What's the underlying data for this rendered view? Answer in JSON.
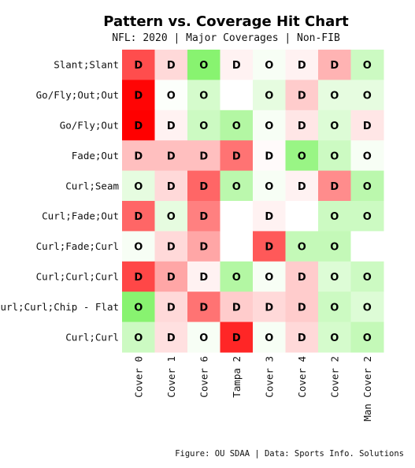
{
  "chart_data": {
    "type": "heatmap",
    "title": "Pattern vs. Coverage Hit Chart",
    "subtitle": "NFL: 2020 | Major Coverages | Non-FIB",
    "caption": "Figure: OU SDAA | Data: Sports Info. Solutions",
    "rows": [
      "Slant;Slant",
      "Go/Fly;Out;Out",
      "Go/Fly;Out",
      "Fade;Out",
      "Curl;Seam",
      "Curl;Fade;Out",
      "Curl;Fade;Curl",
      "Curl;Curl;Curl",
      "Curl;Curl;Chip - Flat",
      "Curl;Curl"
    ],
    "columns": [
      "Cover 0",
      "Cover 1",
      "Cover 6",
      "Tampa 2",
      "Cover 3",
      "Cover 4",
      "Cover 2",
      "Man Cover 2"
    ],
    "cell_labels": [
      [
        "D",
        "D",
        "O",
        "D",
        "O",
        "D",
        "D",
        "O"
      ],
      [
        "D",
        "O",
        "O",
        "",
        "O",
        "D",
        "O",
        "O"
      ],
      [
        "D",
        "D",
        "O",
        "O",
        "O",
        "D",
        "O",
        "D"
      ],
      [
        "D",
        "D",
        "D",
        "D",
        "D",
        "O",
        "O",
        "O"
      ],
      [
        "O",
        "D",
        "D",
        "O",
        "O",
        "D",
        "D",
        "O"
      ],
      [
        "D",
        "O",
        "D",
        "",
        "D",
        "",
        "O",
        "O"
      ],
      [
        "O",
        "D",
        "D",
        "",
        "D",
        "O",
        "O",
        ""
      ],
      [
        "D",
        "D",
        "D",
        "O",
        "O",
        "D",
        "O",
        "O"
      ],
      [
        "O",
        "D",
        "D",
        "D",
        "D",
        "D",
        "O",
        "O"
      ],
      [
        "O",
        "D",
        "O",
        "D",
        "O",
        "D",
        "O",
        "O"
      ]
    ],
    "intensity": [
      [
        -0.7,
        -0.15,
        0.7,
        -0.05,
        0.05,
        -0.05,
        -0.3,
        0.3
      ],
      [
        -0.98,
        0.02,
        0.25,
        null,
        0.15,
        -0.2,
        0.15,
        0.15
      ],
      [
        -1.0,
        -0.05,
        0.3,
        0.45,
        0.05,
        -0.1,
        0.2,
        -0.1
      ],
      [
        -0.25,
        -0.25,
        -0.25,
        -0.55,
        -0.02,
        0.6,
        0.3,
        0.05
      ],
      [
        0.15,
        -0.15,
        -0.6,
        0.4,
        0.05,
        -0.05,
        -0.45,
        0.4
      ],
      [
        -0.6,
        0.15,
        -0.5,
        null,
        -0.05,
        null,
        0.3,
        0.3
      ],
      [
        0.05,
        -0.15,
        -0.35,
        null,
        -0.65,
        0.35,
        0.35,
        null
      ],
      [
        -0.72,
        -0.35,
        -0.05,
        0.45,
        0.05,
        -0.2,
        0.2,
        0.3
      ],
      [
        0.7,
        -0.15,
        -0.55,
        -0.2,
        -0.15,
        -0.2,
        0.3,
        0.2
      ],
      [
        0.3,
        -0.12,
        0.05,
        -0.85,
        0.05,
        -0.15,
        0.25,
        0.35
      ]
    ],
    "color_scale": {
      "negative": "#ff0000",
      "neutral": "#ffffff",
      "positive": "#55ee33"
    },
    "grid": false,
    "legend": "none"
  }
}
